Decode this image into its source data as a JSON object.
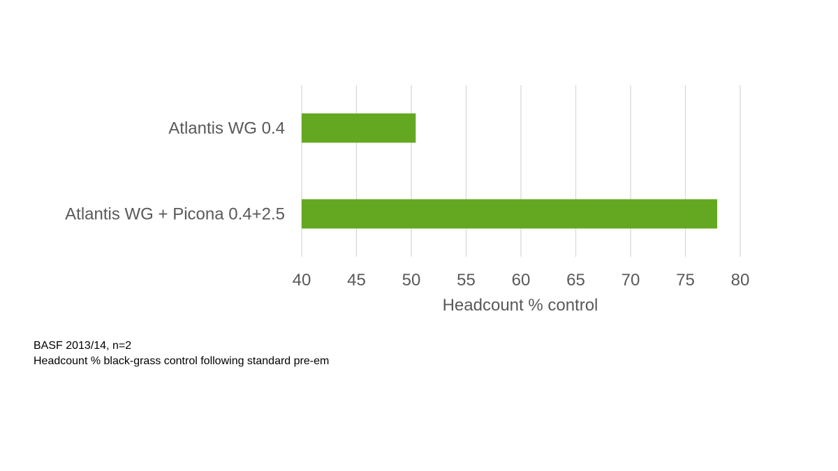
{
  "chart_data": {
    "type": "bar",
    "orientation": "horizontal",
    "categories": [
      "Atlantis WG 0.4",
      "Atlantis WG + Picona 0.4+2.5"
    ],
    "values": [
      50.4,
      77.9
    ],
    "xlabel": "Headcount % control",
    "ylabel": "",
    "xlim": [
      40,
      80
    ],
    "xticks": [
      40,
      45,
      50,
      55,
      60,
      65,
      70,
      75,
      80
    ],
    "grid": true,
    "legend": "none",
    "bar_color": "#63a820"
  },
  "notes": {
    "source": "BASF 2013/14, n=2",
    "description": "Headcount % black-grass control following standard pre-em"
  }
}
